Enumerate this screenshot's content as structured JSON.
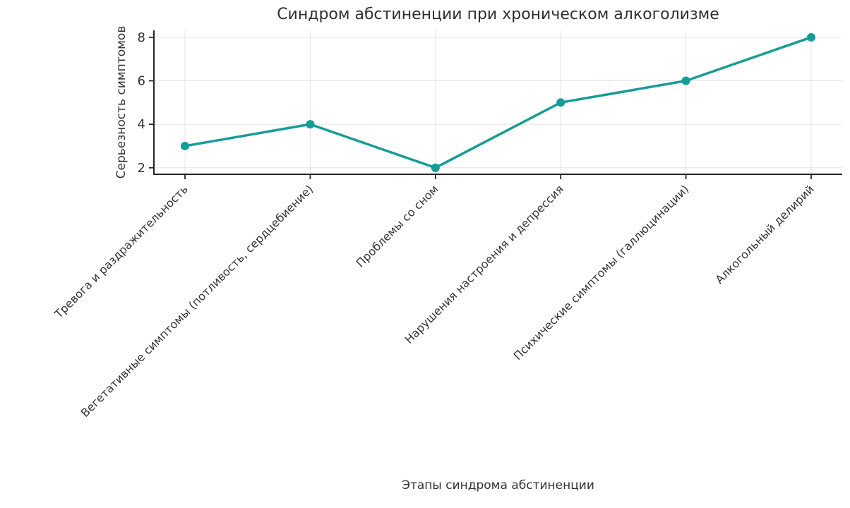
{
  "chart_data": {
    "type": "line",
    "title": "Синдром абстиненции при хроническом алкоголизме",
    "xlabel": "Этапы синдрома абстиненции",
    "ylabel": "Серьезность симптомов",
    "categories": [
      "Тревога и раздражительность",
      "Вегетативные симптомы (потливость, сердцебиение)",
      "Проблемы со сном",
      "Нарушения настроения и депрессия",
      "Психические симптомы (галлюцинации)",
      "Алкогольный делирий"
    ],
    "values": [
      3,
      4,
      2,
      5,
      6,
      8
    ],
    "yticks": [
      2,
      4,
      6,
      8
    ],
    "ylim": [
      1.7,
      8.32
    ],
    "x_tick_rotation_deg": 45,
    "grid": true,
    "legend": "none",
    "marker": "circle",
    "colors": {
      "line": "#169c96",
      "marker": "#169c96",
      "grid": "#e4e4e4",
      "axis": "#262626",
      "tick_text": "#333333",
      "title_text": "#2f2f2f",
      "background": "#ffffff"
    }
  }
}
